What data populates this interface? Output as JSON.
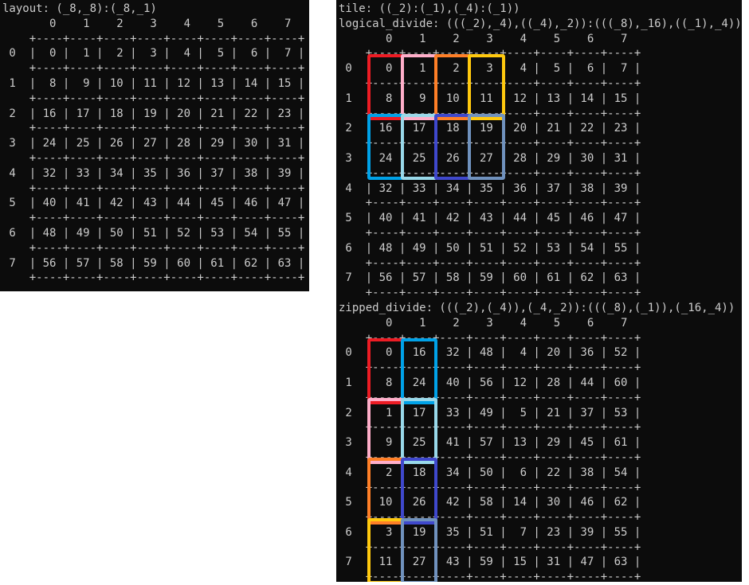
{
  "colors": {
    "panel_bg": "#0c0c0c",
    "text": "#cccccc",
    "red": "#ed1c24",
    "rose": "#ffaec9",
    "orange": "#ff7f27",
    "gold": "#ffc90e",
    "turquoise": "#00a2e8",
    "light_turquoise": "#99d9ea",
    "indigo": "#3f48cc",
    "blue_gray": "#7092be"
  },
  "left_panel": {
    "title": "layout: (_8,_8):(_8,_1)",
    "grid": {
      "col_headers": [
        0,
        1,
        2,
        3,
        4,
        5,
        6,
        7
      ],
      "row_headers": [
        0,
        1,
        2,
        3,
        4,
        5,
        6,
        7
      ],
      "values": [
        [
          0,
          1,
          2,
          3,
          4,
          5,
          6,
          7
        ],
        [
          8,
          9,
          10,
          11,
          12,
          13,
          14,
          15
        ],
        [
          16,
          17,
          18,
          19,
          20,
          21,
          22,
          23
        ],
        [
          24,
          25,
          26,
          27,
          28,
          29,
          30,
          31
        ],
        [
          32,
          33,
          34,
          35,
          36,
          37,
          38,
          39
        ],
        [
          40,
          41,
          42,
          43,
          44,
          45,
          46,
          47
        ],
        [
          48,
          49,
          50,
          51,
          52,
          53,
          54,
          55
        ],
        [
          56,
          57,
          58,
          59,
          60,
          61,
          62,
          63
        ]
      ],
      "highlights": []
    }
  },
  "right_panel": {
    "tile_title": "tile: ((_2):(_1),(_4):(_1))",
    "logical_divide_title": "logical_divide: (((_2),_4),((_4),_2)):(((_8),_16),((_1),_4))",
    "logical_grid": {
      "col_headers": [
        0,
        1,
        2,
        3,
        4,
        5,
        6,
        7
      ],
      "row_headers": [
        0,
        1,
        2,
        3,
        4,
        5,
        6,
        7
      ],
      "values": [
        [
          0,
          1,
          2,
          3,
          4,
          5,
          6,
          7
        ],
        [
          8,
          9,
          10,
          11,
          12,
          13,
          14,
          15
        ],
        [
          16,
          17,
          18,
          19,
          20,
          21,
          22,
          23
        ],
        [
          24,
          25,
          26,
          27,
          28,
          29,
          30,
          31
        ],
        [
          32,
          33,
          34,
          35,
          36,
          37,
          38,
          39
        ],
        [
          40,
          41,
          42,
          43,
          44,
          45,
          46,
          47
        ],
        [
          48,
          49,
          50,
          51,
          52,
          53,
          54,
          55
        ],
        [
          56,
          57,
          58,
          59,
          60,
          61,
          62,
          63
        ]
      ],
      "highlights": [
        {
          "row": 0,
          "col": 0,
          "row_span": 2,
          "color": "red"
        },
        {
          "row": 0,
          "col": 1,
          "row_span": 2,
          "color": "rose"
        },
        {
          "row": 0,
          "col": 2,
          "row_span": 2,
          "color": "orange"
        },
        {
          "row": 0,
          "col": 3,
          "row_span": 2,
          "color": "gold"
        },
        {
          "row": 2,
          "col": 0,
          "row_span": 2,
          "color": "turquoise"
        },
        {
          "row": 2,
          "col": 1,
          "row_span": 2,
          "color": "light_turquoise"
        },
        {
          "row": 2,
          "col": 2,
          "row_span": 2,
          "color": "indigo"
        },
        {
          "row": 2,
          "col": 3,
          "row_span": 2,
          "color": "blue_gray"
        }
      ]
    },
    "zipped_divide_title": "zipped_divide: (((_2),(_4)),(_4,_2)):(((_8),(_1)),(_16,_4))",
    "zipped_grid": {
      "col_headers": [
        0,
        1,
        2,
        3,
        4,
        5,
        6,
        7
      ],
      "row_headers": [
        0,
        1,
        2,
        3,
        4,
        5,
        6,
        7
      ],
      "values": [
        [
          0,
          16,
          32,
          48,
          4,
          20,
          36,
          52
        ],
        [
          8,
          24,
          40,
          56,
          12,
          28,
          44,
          60
        ],
        [
          1,
          17,
          33,
          49,
          5,
          21,
          37,
          53
        ],
        [
          9,
          25,
          41,
          57,
          13,
          29,
          45,
          61
        ],
        [
          2,
          18,
          34,
          50,
          6,
          22,
          38,
          54
        ],
        [
          10,
          26,
          42,
          58,
          14,
          30,
          46,
          62
        ],
        [
          3,
          19,
          35,
          51,
          7,
          23,
          39,
          55
        ],
        [
          11,
          27,
          43,
          59,
          15,
          31,
          47,
          63
        ]
      ],
      "highlights": [
        {
          "row": 0,
          "col": 0,
          "row_span": 2,
          "color": "red"
        },
        {
          "row": 0,
          "col": 1,
          "row_span": 2,
          "color": "turquoise"
        },
        {
          "row": 2,
          "col": 0,
          "row_span": 2,
          "color": "rose"
        },
        {
          "row": 2,
          "col": 1,
          "row_span": 2,
          "color": "light_turquoise"
        },
        {
          "row": 4,
          "col": 0,
          "row_span": 2,
          "color": "orange"
        },
        {
          "row": 4,
          "col": 1,
          "row_span": 2,
          "color": "indigo"
        },
        {
          "row": 6,
          "col": 0,
          "row_span": 2,
          "color": "gold"
        },
        {
          "row": 6,
          "col": 1,
          "row_span": 2,
          "color": "blue_gray"
        }
      ]
    }
  }
}
